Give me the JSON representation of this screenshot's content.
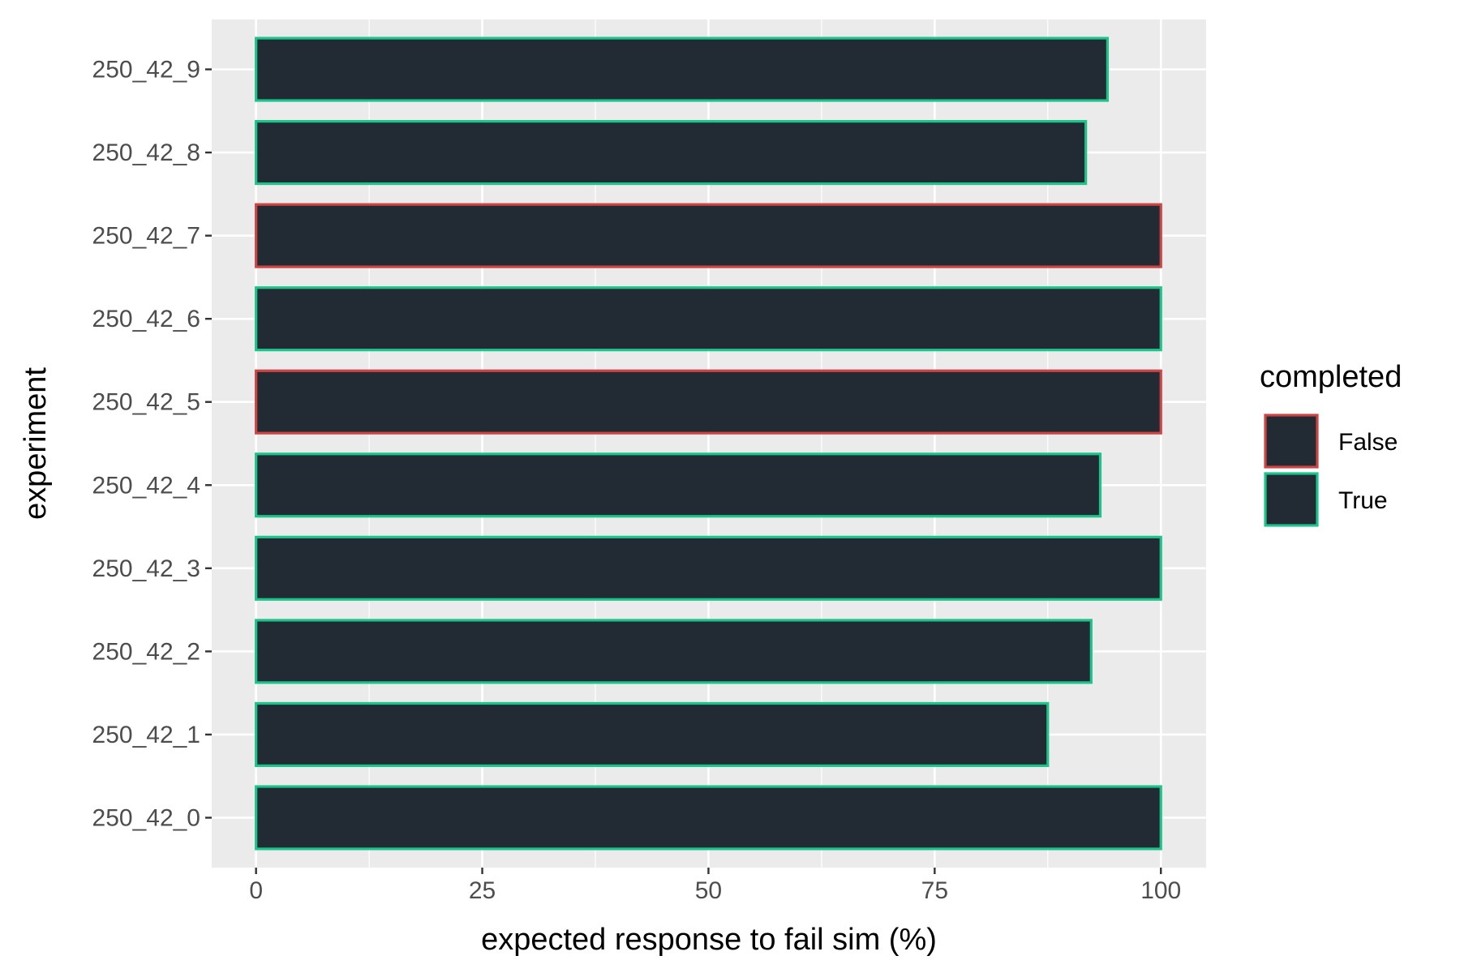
{
  "chart_data": {
    "type": "bar",
    "orientation": "horizontal",
    "categories": [
      "250_42_0",
      "250_42_1",
      "250_42_2",
      "250_42_3",
      "250_42_4",
      "250_42_5",
      "250_42_6",
      "250_42_7",
      "250_42_8",
      "250_42_9"
    ],
    "values": [
      100,
      87.5,
      92.3,
      100,
      93.3,
      100,
      100,
      100,
      91.7,
      94.1
    ],
    "completed": [
      "True",
      "True",
      "True",
      "True",
      "True",
      "False",
      "True",
      "False",
      "True",
      "True"
    ],
    "xlabel": "expected response to fail sim (%)",
    "ylabel": "experiment",
    "xlim": [
      -4.9,
      105
    ],
    "x_ticks": [
      0,
      25,
      50,
      75,
      100
    ],
    "x_tick_labels": [
      "0",
      "25",
      "50",
      "75",
      "100"
    ],
    "grid": true,
    "legend": {
      "title": "completed",
      "position": "right",
      "entries": [
        {
          "label": "False",
          "outline": "#cc4444"
        },
        {
          "label": "True",
          "outline": "#1dc48a"
        }
      ]
    },
    "colors": {
      "bar_fill": "#222b33",
      "panel_background": "#ebebeb",
      "grid_line": "#ffffff",
      "outline_false": "#cc4444",
      "outline_true": "#1dc48a"
    }
  }
}
